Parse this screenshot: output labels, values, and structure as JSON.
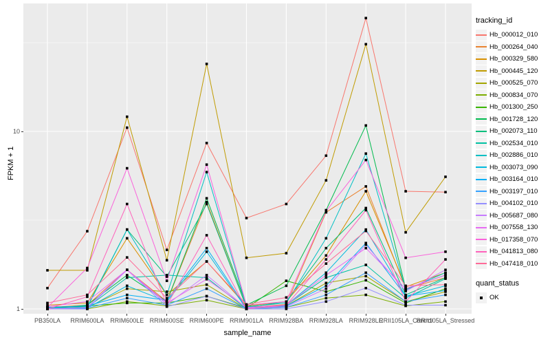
{
  "figure": {
    "y_axis_title": "FPKM + 1",
    "x_axis_title": "sample_name",
    "legend_tracking_title": "tracking_id",
    "legend_quant_title": "quant_status",
    "legend_quant_value": "OK",
    "colors": {
      "panel_bg": "#EBEBEB",
      "grid": "#FFFFFF",
      "tick": "#333333",
      "tick_text": "#4D4D4D",
      "point": "#000000",
      "legend_key_bg": "#F2F2F2"
    }
  },
  "chart_data": {
    "type": "line",
    "title": "",
    "xlabel": "sample_name",
    "ylabel": "FPKM + 1",
    "y_scale": "log10",
    "ylim": [
      0.94,
      52
    ],
    "grid": "on",
    "legend_position": "right",
    "point_marker": "black-square",
    "quant_status": "OK",
    "y_ticks": [
      {
        "label": "10",
        "value": 10
      },
      {
        "label": "1",
        "value": 1
      }
    ],
    "y_minor_gridlines": [
      3.1623,
      31.6228
    ],
    "categories": [
      "PB350LA",
      "RRIM600LA",
      "RRIM600LE",
      "RRIM600SE",
      "RRIM600PE",
      "RRIM901LA",
      "RRIM928BA",
      "RRIM928LA",
      "RRIM928LE",
      "RRII105LA_Control",
      "RRII105LA_Stressed"
    ],
    "series": [
      {
        "name": "Hb_000012_010",
        "color": "#F8766D",
        "values": [
          1.31,
          2.74,
          10.5,
          2.15,
          8.6,
          3.25,
          3.9,
          7.3,
          43.5,
          4.6,
          4.55
        ]
      },
      {
        "name": "Hb_000264_040",
        "color": "#EA8331",
        "values": [
          1.02,
          1.05,
          1.66,
          1.1,
          4.0,
          1.02,
          1.06,
          3.5,
          4.9,
          1.3,
          1.5
        ]
      },
      {
        "name": "Hb_000329_580",
        "color": "#D89000",
        "values": [
          1.05,
          1.08,
          2.5,
          1.2,
          1.85,
          1.04,
          1.1,
          2.0,
          4.6,
          1.33,
          1.6
        ]
      },
      {
        "name": "Hb_000445_120",
        "color": "#C09B00",
        "values": [
          1.65,
          1.65,
          12.1,
          1.88,
          24.0,
          1.94,
          2.06,
          5.3,
          31.0,
          2.7,
          5.55
        ]
      },
      {
        "name": "Hb_000525_070",
        "color": "#A3A500",
        "values": [
          1.0,
          1.02,
          1.3,
          1.25,
          1.37,
          1.0,
          1.04,
          1.4,
          1.53,
          1.1,
          1.25
        ]
      },
      {
        "name": "Hb_000834_070",
        "color": "#7CAE00",
        "values": [
          1.0,
          1.0,
          1.1,
          1.04,
          1.12,
          1.0,
          1.02,
          1.15,
          1.2,
          1.04,
          1.1
        ]
      },
      {
        "name": "Hb_001300_250",
        "color": "#39B600",
        "values": [
          1.02,
          1.04,
          1.08,
          1.08,
          1.18,
          1.01,
          1.44,
          1.25,
          1.45,
          1.08,
          1.3
        ]
      },
      {
        "name": "Hb_001728_120",
        "color": "#00BB4E",
        "values": [
          1.0,
          1.05,
          1.55,
          1.1,
          4.2,
          1.05,
          1.35,
          3.6,
          10.8,
          1.3,
          1.55
        ]
      },
      {
        "name": "Hb_002073_110",
        "color": "#00BF7D",
        "values": [
          1.02,
          1.03,
          2.8,
          1.52,
          3.9,
          1.02,
          1.1,
          2.2,
          3.7,
          1.2,
          1.5
        ]
      },
      {
        "name": "Hb_002534_010",
        "color": "#00C1A3",
        "values": [
          1.0,
          1.02,
          1.5,
          1.55,
          1.5,
          1.0,
          1.05,
          1.5,
          1.77,
          1.15,
          1.48
        ]
      },
      {
        "name": "Hb_002886_010",
        "color": "#00BFC4",
        "values": [
          1.01,
          1.02,
          2.8,
          1.2,
          5.9,
          1.03,
          1.08,
          2.5,
          7.5,
          1.28,
          1.6
        ]
      },
      {
        "name": "Hb_003073_090",
        "color": "#00BADE",
        "values": [
          1.0,
          1.01,
          1.35,
          1.1,
          2.1,
          1.0,
          1.05,
          1.6,
          2.8,
          1.18,
          1.35
        ]
      },
      {
        "name": "Hb_003164_010",
        "color": "#00B0F6",
        "values": [
          1.02,
          1.04,
          1.2,
          1.12,
          2.2,
          1.01,
          1.04,
          1.35,
          2.35,
          1.18,
          1.27
        ]
      },
      {
        "name": "Hb_003197_010",
        "color": "#35A2FF",
        "values": [
          1.0,
          1.01,
          1.15,
          1.05,
          1.3,
          1.0,
          1.02,
          1.2,
          1.6,
          1.1,
          1.2
        ]
      },
      {
        "name": "Hb_004102_010",
        "color": "#9590FF",
        "values": [
          1.0,
          1.0,
          1.66,
          1.03,
          1.18,
          1.0,
          1.0,
          1.1,
          1.31,
          1.05,
          1.05
        ]
      },
      {
        "name": "Hb_005687_080",
        "color": "#C77CFF",
        "values": [
          1.0,
          1.02,
          1.66,
          1.06,
          1.55,
          1.01,
          1.03,
          1.3,
          2.3,
          1.26,
          1.66
        ]
      },
      {
        "name": "Hb_007558_130",
        "color": "#E76BF3",
        "values": [
          1.03,
          1.1,
          1.66,
          1.08,
          1.47,
          1.02,
          1.05,
          1.55,
          2.2,
          1.3,
          1.55
        ]
      },
      {
        "name": "Hb_017358_070",
        "color": "#FA62DB",
        "values": [
          1.02,
          1.7,
          6.2,
          1.44,
          6.5,
          1.05,
          1.1,
          3.55,
          6.9,
          1.94,
          2.1
        ]
      },
      {
        "name": "Hb_041813_080",
        "color": "#FF62BC",
        "values": [
          1.0,
          1.17,
          3.9,
          1.05,
          2.6,
          1.0,
          1.05,
          1.9,
          3.6,
          1.1,
          1.9
        ]
      },
      {
        "name": "Hb_047418_010",
        "color": "#FF6A98",
        "values": [
          1.08,
          1.2,
          1.95,
          1.15,
          1.85,
          1.06,
          1.16,
          1.8,
          2.75,
          1.35,
          1.37
        ]
      }
    ]
  }
}
